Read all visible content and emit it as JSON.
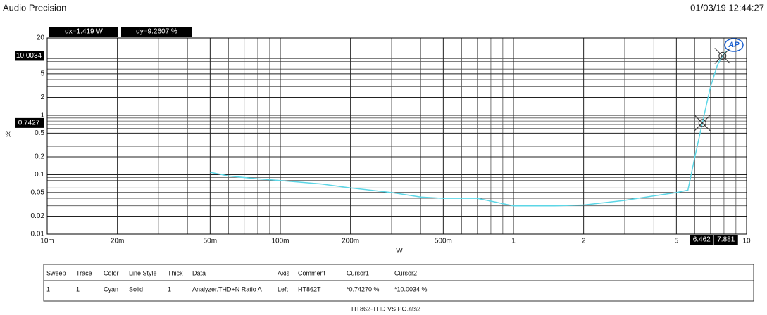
{
  "header": {
    "title": "Audio Precision",
    "timestamp": "01/03/19 12:44:27"
  },
  "chart_data": {
    "type": "line",
    "xscale": "log",
    "yscale": "log",
    "xlabel": "W",
    "ylabel": "%",
    "xlim": [
      0.01,
      10
    ],
    "ylim": [
      0.01,
      20
    ],
    "xticks": [
      {
        "value": 0.01,
        "label": "10m"
      },
      {
        "value": 0.02,
        "label": "20m"
      },
      {
        "value": 0.05,
        "label": "50m"
      },
      {
        "value": 0.1,
        "label": "100m"
      },
      {
        "value": 0.2,
        "label": "200m"
      },
      {
        "value": 0.5,
        "label": "500m"
      },
      1,
      2,
      5,
      10
    ],
    "yticks": [
      0.01,
      0.02,
      0.05,
      0.1,
      0.2,
      0.5,
      1,
      2,
      5,
      10,
      20
    ],
    "xgrid": [
      0.03,
      0.04,
      0.06,
      0.07,
      0.08,
      0.09,
      0.3,
      0.4,
      0.6,
      0.7,
      0.8,
      0.9,
      3,
      4,
      6,
      7,
      8,
      9
    ],
    "ygrid": [
      0.03,
      0.04,
      0.06,
      0.07,
      0.08,
      0.09,
      0.3,
      0.4,
      0.6,
      0.7,
      0.8,
      0.9,
      3,
      4,
      6,
      7,
      8,
      9
    ],
    "grid": true,
    "x": [
      0.05,
      0.06,
      0.08,
      0.1,
      0.15,
      0.2,
      0.3,
      0.4,
      0.5,
      0.7,
      0.8,
      1,
      1.5,
      2,
      3,
      4,
      5,
      5.6,
      6,
      6.462,
      7,
      7.5,
      7.881,
      8.2
    ],
    "series": [
      {
        "color": "#5cd6e6",
        "values": [
          0.11,
          0.095,
          0.085,
          0.08,
          0.07,
          0.06,
          0.05,
          0.042,
          0.04,
          0.04,
          0.036,
          0.03,
          0.03,
          0.031,
          0.037,
          0.044,
          0.05,
          0.055,
          0.2,
          0.7427,
          3,
          7,
          10.0034,
          12
        ]
      }
    ],
    "cursors": [
      {
        "x": 6.462,
        "y": 0.7427
      },
      {
        "x": 7.881,
        "y": 10.0034
      }
    ],
    "dx": "dx=1.419  W",
    "dy": "dy=9.2607  %",
    "logo": "AP"
  },
  "table": {
    "columns": [
      "Sweep",
      "Trace",
      "Color",
      "Line Style",
      "Thick",
      "Data",
      "Axis",
      "Comment",
      "Cursor1",
      "Cursor2"
    ],
    "rows": [
      [
        "1",
        "1",
        "Cyan",
        "Solid",
        "1",
        "Analyzer.THD+N Ratio A",
        "Left",
        "HT862T",
        "*0.74270  %",
        "*10.0034  %"
      ]
    ]
  },
  "footer": "HT862-THD VS PO.ats2"
}
